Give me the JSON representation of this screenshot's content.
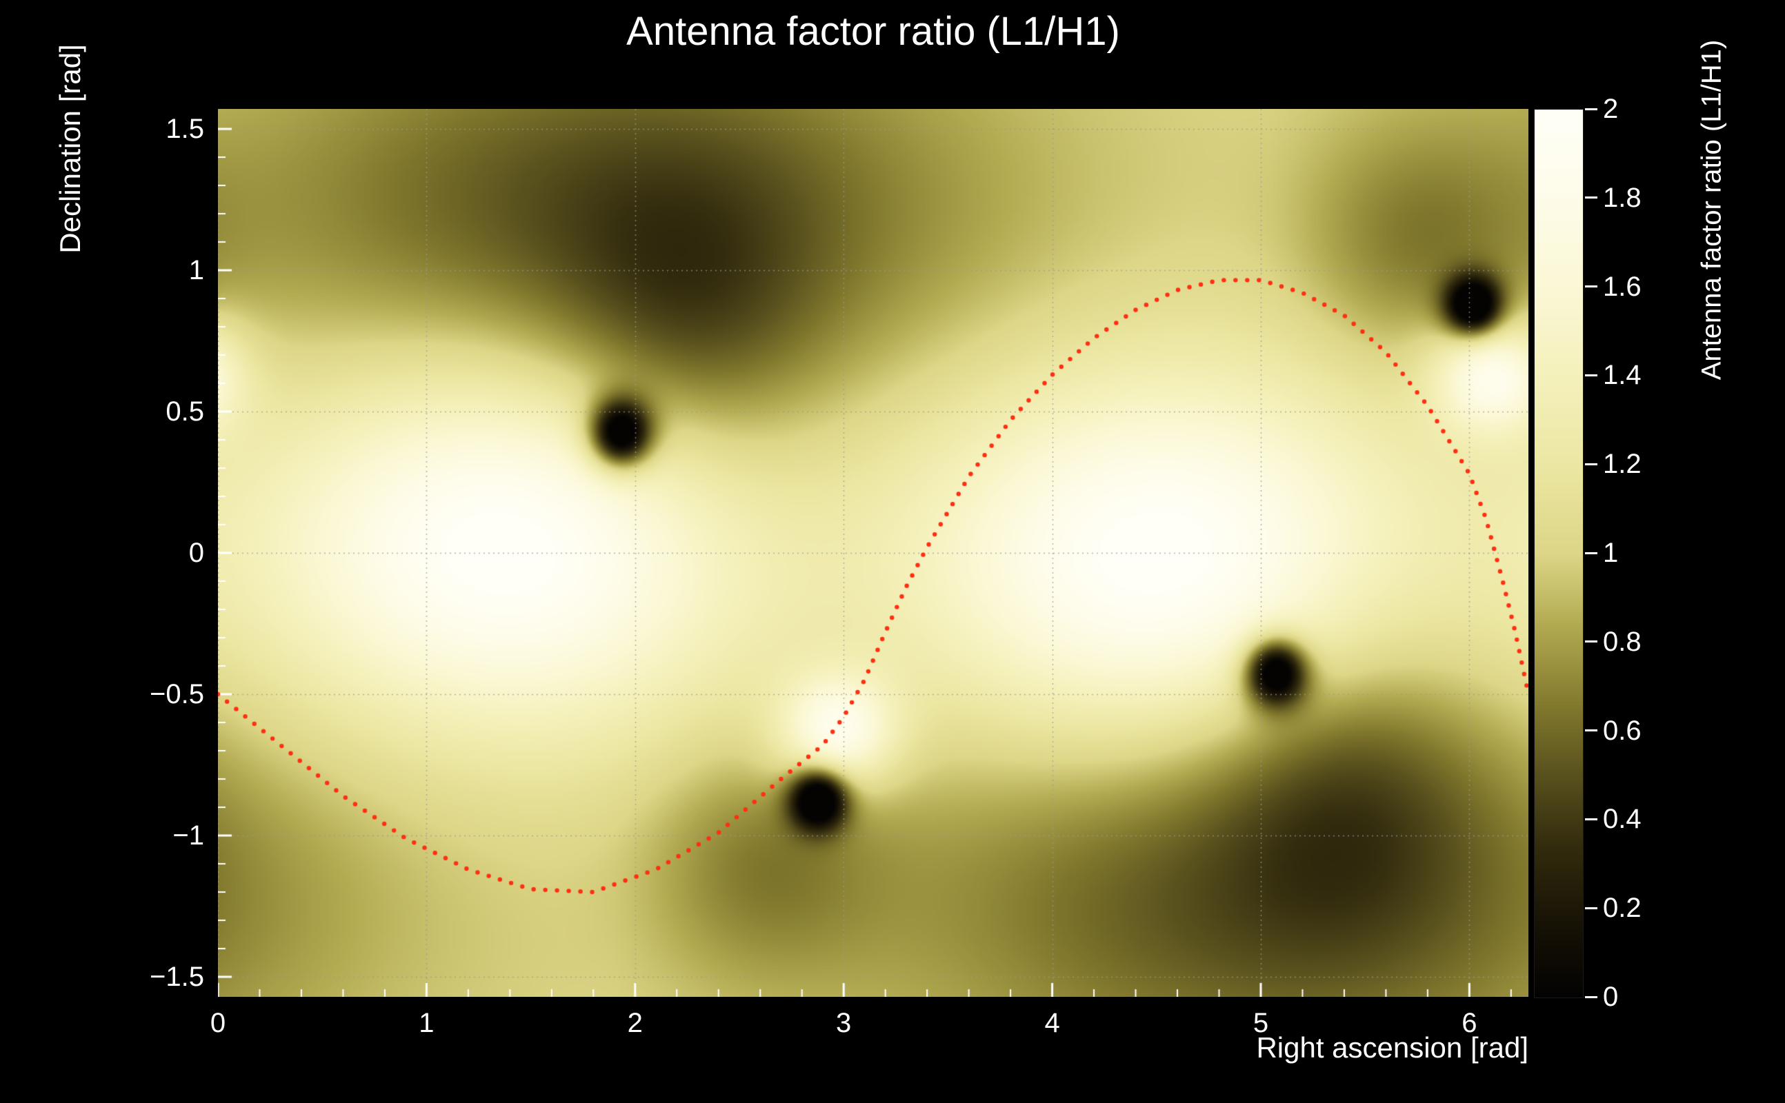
{
  "background": "#000000",
  "text_color": "#ffffff",
  "chart_data": {
    "type": "heatmap",
    "title": "Antenna factor ratio (L1/H1)",
    "xlabel": "Right ascension [rad]",
    "ylabel": "Declination [rad]",
    "zlabel": "Antenna factor ratio (L1/H1)",
    "x_range": [
      0,
      6.2832
    ],
    "y_range": [
      -1.5708,
      1.5708
    ],
    "z_range": [
      0,
      2
    ],
    "grid": true,
    "grid_color": "#9a9a9a",
    "tick_color": "#ffffff",
    "x_ticks": [
      {
        "v": 0,
        "label": "0"
      },
      {
        "v": 1,
        "label": "1"
      },
      {
        "v": 2,
        "label": "2"
      },
      {
        "v": 3,
        "label": "3"
      },
      {
        "v": 4,
        "label": "4"
      },
      {
        "v": 5,
        "label": "5"
      },
      {
        "v": 6,
        "label": "6"
      }
    ],
    "x_minor_step": 0.2,
    "y_ticks": [
      {
        "v": -1.5,
        "label": "−1.5"
      },
      {
        "v": -1,
        "label": "−1"
      },
      {
        "v": -0.5,
        "label": "−0.5"
      },
      {
        "v": 0,
        "label": "0"
      },
      {
        "v": 0.5,
        "label": "0.5"
      },
      {
        "v": 1,
        "label": "1"
      },
      {
        "v": 1.5,
        "label": "1.5"
      }
    ],
    "y_minor_step": 0.1,
    "colorbar_ticks": [
      {
        "v": 0,
        "label": "0"
      },
      {
        "v": 0.2,
        "label": "0.2"
      },
      {
        "v": 0.4,
        "label": "0.4"
      },
      {
        "v": 0.6,
        "label": "0.6"
      },
      {
        "v": 0.8,
        "label": "0.8"
      },
      {
        "v": 1,
        "label": "1"
      },
      {
        "v": 1.2,
        "label": "1.2"
      },
      {
        "v": 1.4,
        "label": "1.4"
      },
      {
        "v": 1.6,
        "label": "1.6"
      },
      {
        "v": 1.8,
        "label": "1.8"
      },
      {
        "v": 2,
        "label": "2"
      }
    ],
    "colormap_stops": [
      {
        "t": 0.0,
        "c": "#040302"
      },
      {
        "t": 0.08,
        "c": "#171206"
      },
      {
        "t": 0.17,
        "c": "#332c0e"
      },
      {
        "t": 0.25,
        "c": "#59511d"
      },
      {
        "t": 0.33,
        "c": "#837a2e"
      },
      {
        "t": 0.42,
        "c": "#b3ab52"
      },
      {
        "t": 0.5,
        "c": "#ddd687"
      },
      {
        "t": 0.6,
        "c": "#ece7a3"
      },
      {
        "t": 0.7,
        "c": "#f5f1bc"
      },
      {
        "t": 0.8,
        "c": "#fbf8d6"
      },
      {
        "t": 0.9,
        "c": "#fefce9"
      },
      {
        "t": 1.0,
        "c": "#fffff8"
      }
    ],
    "field": {
      "base": 1.02,
      "bright_gaussians": [
        {
          "x": 1.38,
          "y": 0.03,
          "sx": 0.8,
          "sy": 0.45,
          "a": 1.05
        },
        {
          "x": 4.52,
          "y": -0.03,
          "sx": 0.8,
          "sy": 0.45,
          "a": 1.05
        },
        {
          "x": 2.97,
          "y": -0.63,
          "sx": 0.2,
          "sy": 0.14,
          "a": 0.85
        },
        {
          "x": 6.11,
          "y": 0.63,
          "sx": 0.2,
          "sy": 0.14,
          "a": 0.85
        }
      ],
      "dark_gaussians": [
        {
          "x": 1.93,
          "y": 0.42,
          "sx": 0.105,
          "sy": 0.085,
          "a": 1.45
        },
        {
          "x": 5.07,
          "y": -0.42,
          "sx": 0.105,
          "sy": 0.085,
          "a": 1.45
        },
        {
          "x": 2.88,
          "y": -0.87,
          "sx": 0.095,
          "sy": 0.075,
          "a": 1.35
        },
        {
          "x": 6.02,
          "y": 0.87,
          "sx": 0.095,
          "sy": 0.075,
          "a": 1.35
        },
        {
          "x": 2.25,
          "y": 0.75,
          "sx": 0.45,
          "sy": 0.4,
          "a": 0.33
        },
        {
          "x": 5.39,
          "y": -0.75,
          "sx": 0.45,
          "sy": 0.4,
          "a": 0.33
        },
        {
          "x": 2.6,
          "y": -1.1,
          "sx": 0.4,
          "sy": 0.3,
          "a": 0.3
        },
        {
          "x": 5.74,
          "y": 1.1,
          "sx": 0.4,
          "sy": 0.3,
          "a": 0.3
        },
        {
          "x": 1.9,
          "y": 1.2,
          "sx": 1.3,
          "sy": 0.5,
          "a": 0.55
        },
        {
          "x": 5.04,
          "y": -1.2,
          "sx": 1.3,
          "sy": 0.5,
          "a": 0.55
        }
      ]
    },
    "overlay_curve": {
      "color": "#ff2f12",
      "style": "dotted",
      "dot_radius_px": 3.2,
      "dot_spacing_px": 17,
      "points": [
        [
          0.0,
          -0.5
        ],
        [
          0.3,
          -0.68
        ],
        [
          0.6,
          -0.86
        ],
        [
          0.9,
          -1.01
        ],
        [
          1.2,
          -1.12
        ],
        [
          1.5,
          -1.19
        ],
        [
          1.8,
          -1.2
        ],
        [
          2.1,
          -1.12
        ],
        [
          2.4,
          -0.99
        ],
        [
          2.7,
          -0.8
        ],
        [
          2.9,
          -0.68
        ],
        [
          3.0,
          -0.58
        ],
        [
          3.1,
          -0.45
        ],
        [
          3.2,
          -0.28
        ],
        [
          3.3,
          -0.12
        ],
        [
          3.4,
          0.02
        ],
        [
          3.6,
          0.27
        ],
        [
          3.8,
          0.47
        ],
        [
          4.0,
          0.63
        ],
        [
          4.2,
          0.76
        ],
        [
          4.4,
          0.86
        ],
        [
          4.6,
          0.93
        ],
        [
          4.8,
          0.965
        ],
        [
          5.0,
          0.965
        ],
        [
          5.2,
          0.92
        ],
        [
          5.4,
          0.84
        ],
        [
          5.6,
          0.71
        ],
        [
          5.8,
          0.52
        ],
        [
          6.0,
          0.28
        ],
        [
          6.08,
          0.12
        ],
        [
          6.16,
          -0.1
        ],
        [
          6.22,
          -0.28
        ],
        [
          6.2832,
          -0.5
        ]
      ]
    }
  }
}
